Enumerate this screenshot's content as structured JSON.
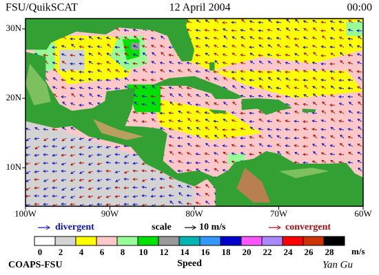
{
  "header": {
    "title": "FSU/QuikSCAT",
    "date": "12 April 2004",
    "time": "00:00"
  },
  "map": {
    "lat_ticks": [
      {
        "value": 30,
        "label": "30N"
      },
      {
        "value": 20,
        "label": "20N"
      },
      {
        "value": 10,
        "label": "10N"
      }
    ],
    "lon_ticks": [
      {
        "value": -100,
        "label": "100W"
      },
      {
        "value": -90,
        "label": "90W"
      },
      {
        "value": -80,
        "label": "80W"
      },
      {
        "value": -70,
        "label": "70W"
      },
      {
        "value": -60,
        "label": "60W"
      }
    ]
  },
  "legend": {
    "divergent": "divergent",
    "scale": "scale",
    "scale_value": "10 m/s",
    "convergent": "convergent",
    "speed_ticks": [
      0,
      2,
      4,
      6,
      8,
      10,
      12,
      14,
      16,
      18,
      20,
      22,
      24,
      26,
      28
    ],
    "colors": [
      "#ffffff",
      "#d3d3d3",
      "#ffff00",
      "#ffc8c8",
      "#98fb98",
      "#00e000",
      "#999999",
      "#00b4b4",
      "#3399ff",
      "#0000cc",
      "#ff55ff",
      "#aa88ff",
      "#ff0000",
      "#cc3300",
      "#000000"
    ],
    "unit": "m/s",
    "speed_label": "Speed"
  },
  "footer": {
    "credit": "COAPS-FSU",
    "author": "Yan Gu"
  }
}
